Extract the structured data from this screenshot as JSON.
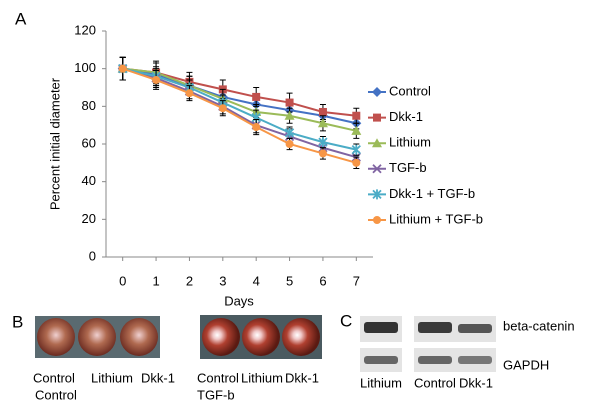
{
  "chart_data": {
    "type": "line",
    "ylabel": "Percent initial diameter",
    "xlabel": "Days",
    "x": [
      0,
      1,
      2,
      3,
      4,
      5,
      6,
      7
    ],
    "xlim": [
      -0.5,
      7.5
    ],
    "xticks": [
      0,
      1,
      2,
      3,
      4,
      5,
      6,
      7
    ],
    "ylim": [
      0,
      120
    ],
    "yticks": [
      0,
      20,
      40,
      60,
      80,
      100,
      120
    ],
    "grid": false,
    "legend": "right",
    "series": [
      {
        "name": "Control",
        "color": "#4472c4",
        "marker": "diamond",
        "values": [
          100,
          97,
          91,
          85,
          81,
          78,
          75,
          71
        ],
        "errors": [
          6,
          6,
          5,
          5,
          4,
          4,
          3,
          3
        ]
      },
      {
        "name": "Dkk-1",
        "color": "#c0504d",
        "marker": "square",
        "values": [
          100,
          98,
          93,
          89,
          85,
          82,
          77,
          75
        ],
        "errors": [
          6,
          6,
          5,
          5,
          5,
          5,
          4,
          4
        ]
      },
      {
        "name": "Lithium",
        "color": "#9bbb59",
        "marker": "triangle",
        "values": [
          100,
          98,
          91,
          84,
          77,
          75,
          71,
          67
        ],
        "errors": [
          6,
          5,
          5,
          5,
          4,
          4,
          4,
          4
        ]
      },
      {
        "name": "TGF-b",
        "color": "#8064a2",
        "marker": "x",
        "values": [
          100,
          95,
          88,
          80,
          70,
          64,
          58,
          53
        ],
        "errors": [
          6,
          5,
          4,
          4,
          4,
          4,
          3,
          3
        ]
      },
      {
        "name": "Dkk-1 + TGF-b",
        "color": "#4bacc6",
        "marker": "star",
        "values": [
          100,
          96,
          90,
          82,
          74,
          66,
          61,
          57
        ],
        "errors": [
          6,
          5,
          4,
          4,
          4,
          3,
          3,
          3
        ]
      },
      {
        "name": "Lithium + TGF-b",
        "color": "#f79646",
        "marker": "circle",
        "values": [
          100,
          94,
          87,
          79,
          69,
          60,
          55,
          50
        ],
        "errors": [
          6,
          5,
          4,
          4,
          4,
          3,
          3,
          3
        ]
      }
    ]
  },
  "panel_labels": [
    "A",
    "B",
    "C"
  ],
  "panel_b": {
    "left_labels": [
      "Control",
      "Lithium",
      "Dkk-1"
    ],
    "left_group": "Control",
    "right_labels": [
      "Control",
      "Lithium",
      "Dkk-1"
    ],
    "right_group": "TGF-b"
  },
  "panel_c": {
    "bands": [
      "beta-catenin",
      "GAPDH"
    ],
    "lanes": [
      "Lithium",
      "Control",
      "Dkk-1"
    ]
  }
}
